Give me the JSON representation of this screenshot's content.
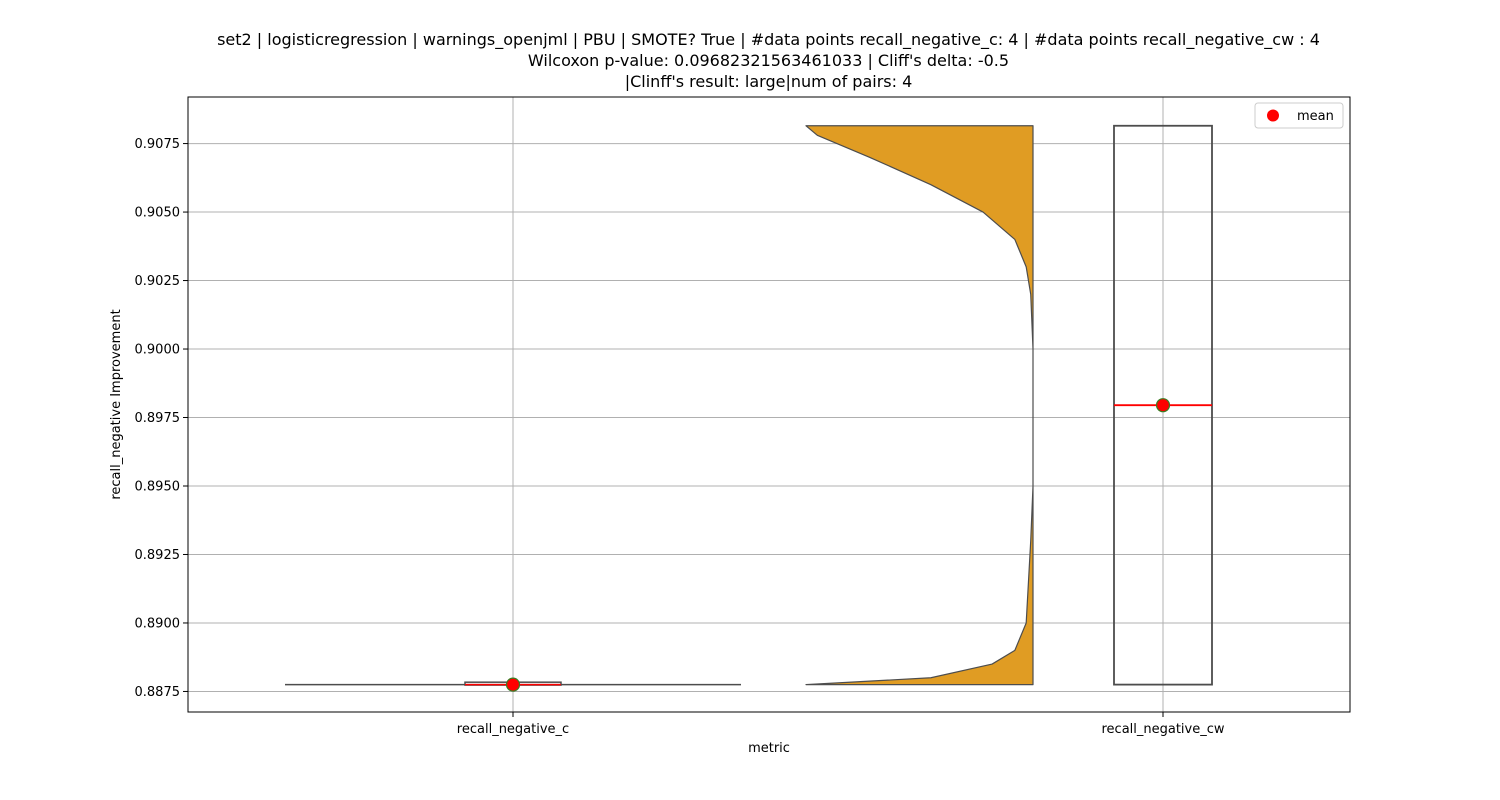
{
  "title_lines": [
    "set2 | logisticregression | warnings_openjml | PBU | SMOTE? True | #data points recall_negative_c: 4 | #data points recall_negative_cw : 4",
    "Wilcoxon p-value: 0.09682321563461033 | Cliff's delta: -0.5",
    "|Clinff's result: large|num of pairs: 4"
  ],
  "chart_data": {
    "type": "violin+box",
    "xlabel": "metric",
    "ylabel": "recall_negative Improvement",
    "categories": [
      "recall_negative_c",
      "recall_negative_cw"
    ],
    "ylim": [
      0.88675,
      0.9092
    ],
    "yticks": [
      0.8875,
      0.89,
      0.8925,
      0.895,
      0.8975,
      0.9,
      0.9025,
      0.905,
      0.9075
    ],
    "ytick_labels": [
      "0.8875",
      "0.8900",
      "0.8925",
      "0.8950",
      "0.8975",
      "0.9000",
      "0.9025",
      "0.9050",
      "0.9075"
    ],
    "grid": true,
    "legend": {
      "entries": [
        "mean"
      ],
      "position": "upper right"
    },
    "colors": {
      "violin_fill": "#e09c23",
      "violin_edge": "#4d4d4d",
      "median": "#ff0000",
      "mean_marker": "#ff0000",
      "mean_edge": "#3a7d22",
      "grid": "#b0b0b0"
    },
    "series": [
      {
        "category": "recall_negative_c",
        "violin_value": 0.88775,
        "box": {
          "min": 0.88775,
          "q1": 0.88775,
          "median": 0.88775,
          "q3": 0.88782,
          "max": 0.88782
        },
        "mean": 0.88775
      },
      {
        "category": "recall_negative_cw",
        "violin_range": [
          0.88775,
          0.90815
        ],
        "violin_profile": [
          [
            0.88775,
            0.0
          ],
          [
            0.888,
            0.55
          ],
          [
            0.8885,
            0.82
          ],
          [
            0.889,
            0.92
          ],
          [
            0.89,
            0.97
          ],
          [
            0.8915,
            0.98
          ],
          [
            0.893,
            0.99
          ],
          [
            0.895,
            1.0
          ],
          [
            0.8975,
            1.0
          ],
          [
            0.9,
            1.0
          ],
          [
            0.902,
            0.99
          ],
          [
            0.903,
            0.97
          ],
          [
            0.904,
            0.92
          ],
          [
            0.905,
            0.78
          ],
          [
            0.906,
            0.55
          ],
          [
            0.907,
            0.28
          ],
          [
            0.9078,
            0.05
          ],
          [
            0.90815,
            0.0
          ]
        ],
        "box": {
          "min": 0.88775,
          "q1": 0.88775,
          "median": 0.89795,
          "q3": 0.90815,
          "max": 0.90815
        },
        "mean": 0.89795
      }
    ]
  }
}
